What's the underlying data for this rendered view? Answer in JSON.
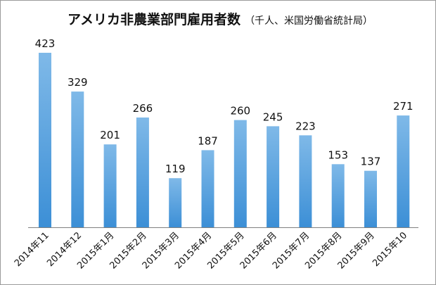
{
  "chart_data": {
    "type": "bar",
    "title": "アメリカ非農業部門雇用者数",
    "subtitle": "（千人、米国労働省統計局）",
    "categories": [
      "2014年11",
      "2014年12",
      "2015年1月",
      "2015年2月",
      "2015年3月",
      "2015年4月",
      "2015年5月",
      "2015年6月",
      "2015年7月",
      "2015年8月",
      "2015年9月",
      "2015年10"
    ],
    "values": [
      423,
      329,
      201,
      266,
      119,
      187,
      260,
      245,
      223,
      153,
      137,
      271
    ],
    "ylim": [
      0,
      450
    ],
    "grid": false,
    "legend": "none",
    "bar_color_top": "#7fb9e8",
    "bar_color_bottom": "#3c8fd6",
    "axis_color": "#808080"
  }
}
